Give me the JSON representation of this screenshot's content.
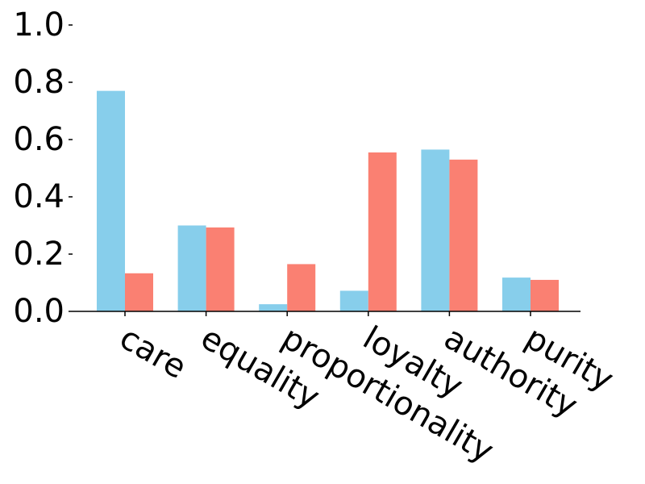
{
  "chart_data": {
    "type": "bar",
    "title": "",
    "xlabel": "",
    "ylabel": "",
    "categories": [
      "care",
      "equality",
      "proportionality",
      "loyalty",
      "authority",
      "purity"
    ],
    "series": [
      {
        "color": "#87CEEB",
        "values": [
          0.77,
          0.3,
          0.025,
          0.072,
          0.565,
          0.118
        ]
      },
      {
        "color": "#FA8072",
        "values": [
          0.133,
          0.293,
          0.165,
          0.555,
          0.53,
          0.11
        ]
      }
    ],
    "ylim": [
      0,
      1.0
    ],
    "yticks": [
      "0.0",
      "0.2",
      "0.4",
      "0.6",
      "0.8",
      "1.0"
    ],
    "grid": false,
    "legend": "none"
  }
}
